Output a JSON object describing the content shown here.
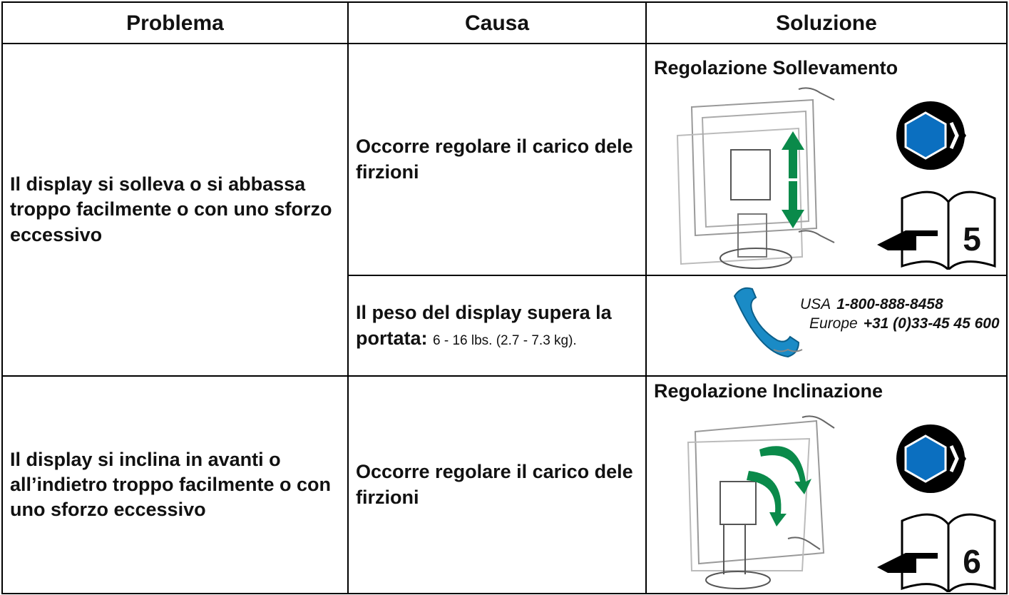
{
  "header": [
    "Problema",
    "Causa",
    "Soluzione"
  ],
  "rows": [
    {
      "problem": "Il display si solleva o si abbassa troppo facilmente o con uno sforzo eccessivo",
      "causes": [
        {
          "text": "Occorre regolare il carico dele firzioni"
        },
        {
          "bold": "Il peso del display supera la portata:",
          "text": "6 - 16 lbs. (2.7 - 7.3 kg)."
        }
      ],
      "solutions": [
        {
          "title": "Regolazione Sollevamento",
          "page": "5"
        },
        {
          "contacts": [
            {
              "region": "USA",
              "phone": "1-800-888-8458"
            },
            {
              "region": "Europe",
              "phone": "+31 (0)33-45 45 600"
            }
          ]
        }
      ]
    },
    {
      "problem": "Il display si inclina in avanti o all’indietro troppo facilmente o con uno sforzo eccessivo",
      "causes": [
        {
          "text": "Occorre regolare il carico dele firzioni"
        }
      ],
      "solutions": [
        {
          "title": "Regolazione Inclinazione",
          "page": "6"
        }
      ]
    }
  ]
}
